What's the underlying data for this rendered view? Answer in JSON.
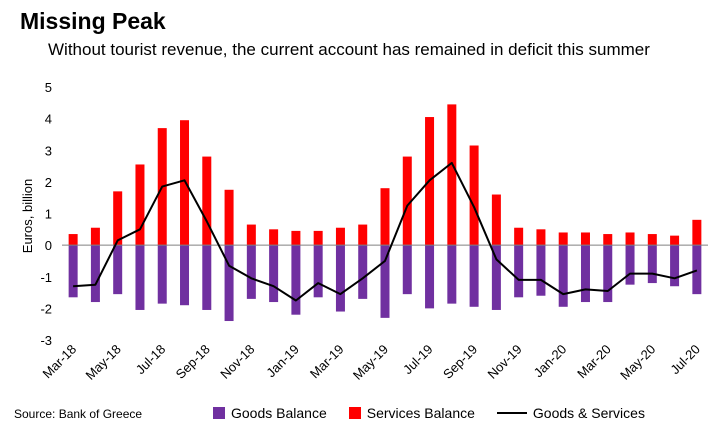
{
  "chart_data": {
    "type": "bar",
    "title": "Missing Peak",
    "subtitle": "Without tourist revenue, the current account has remained in deficit this summer",
    "ylabel": "Euros, billion",
    "ylim": [
      -3,
      5
    ],
    "yticks": [
      -3,
      -2,
      -1,
      0,
      1,
      2,
      3,
      4,
      5
    ],
    "x_tick_labels": [
      "Mar-18",
      "May-18",
      "Jul-18",
      "Sep-18",
      "Nov-18",
      "Jan-19",
      "Mar-19",
      "May-19",
      "Jul-19",
      "Sep-19",
      "Nov-19",
      "Jan-20",
      "Mar-20",
      "May-20",
      "Jul-20"
    ],
    "categories": [
      "Mar-18",
      "Apr-18",
      "May-18",
      "Jun-18",
      "Jul-18",
      "Aug-18",
      "Sep-18",
      "Oct-18",
      "Nov-18",
      "Dec-18",
      "Jan-19",
      "Feb-19",
      "Mar-19",
      "Apr-19",
      "May-19",
      "Jun-19",
      "Jul-19",
      "Aug-19",
      "Sep-19",
      "Oct-19",
      "Nov-19",
      "Dec-19",
      "Jan-20",
      "Feb-20",
      "Mar-20",
      "Apr-20",
      "May-20",
      "Jun-20",
      "Jul-20"
    ],
    "series": [
      {
        "name": "Goods Balance",
        "kind": "bar",
        "color": "#7030A0",
        "values": [
          -1.65,
          -1.8,
          -1.55,
          -2.05,
          -1.85,
          -1.9,
          -2.05,
          -2.4,
          -1.7,
          -1.8,
          -2.2,
          -1.65,
          -2.1,
          -1.7,
          -2.3,
          -1.55,
          -2.0,
          -1.85,
          -1.95,
          -2.05,
          -1.65,
          -1.6,
          -1.95,
          -1.8,
          -1.8,
          -1.25,
          -1.2,
          -1.3,
          -1.55
        ]
      },
      {
        "name": "Services Balance",
        "kind": "bar",
        "color": "#FF0000",
        "values": [
          0.35,
          0.55,
          1.7,
          2.55,
          3.7,
          3.95,
          2.8,
          1.75,
          0.65,
          0.5,
          0.45,
          0.45,
          0.55,
          0.65,
          1.8,
          2.8,
          4.05,
          4.45,
          3.15,
          1.6,
          0.55,
          0.5,
          0.4,
          0.4,
          0.35,
          0.4,
          0.35,
          0.3,
          0.8
        ]
      },
      {
        "name": "Goods & Services",
        "kind": "line",
        "color": "#000000",
        "values": [
          -1.3,
          -1.25,
          0.15,
          0.5,
          1.85,
          2.05,
          0.75,
          -0.65,
          -1.05,
          -1.3,
          -1.75,
          -1.2,
          -1.55,
          -1.05,
          -0.5,
          1.25,
          2.05,
          2.6,
          1.2,
          -0.45,
          -1.1,
          -1.1,
          -1.55,
          -1.4,
          -1.45,
          -0.9,
          -0.9,
          -1.05,
          -0.8
        ]
      }
    ],
    "source": "Source: Bank of Greece",
    "legend_position": "bottom"
  }
}
